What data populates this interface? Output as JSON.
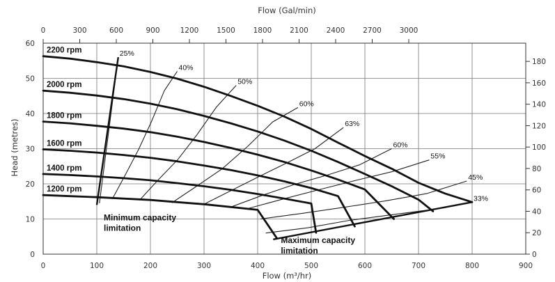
{
  "chart_data": {
    "type": "line",
    "title": "",
    "xlabel": "Flow (m³/hr)",
    "x2label": "Flow (Gal/min)",
    "ylabel": "Head (metres)",
    "xlim": [
      0,
      900
    ],
    "ylim": [
      0,
      60
    ],
    "x2lim": [
      0,
      3960
    ],
    "y2lim": [
      0,
      197
    ],
    "grid": true,
    "x_ticks": [
      "0",
      "100",
      "200",
      "300",
      "400",
      "500",
      "600",
      "700",
      "800",
      "900"
    ],
    "y_ticks": [
      "0",
      "10",
      "20",
      "30",
      "40",
      "50",
      "60"
    ],
    "x2_ticks": [
      "0",
      "300",
      "600",
      "900",
      "1200",
      "1500",
      "1800",
      "2100",
      "2400",
      "2700",
      "3000"
    ],
    "y2_ticks": [
      "0",
      "20",
      "40",
      "60",
      "80",
      "100",
      "120",
      "140",
      "160",
      "180"
    ],
    "series": [
      {
        "name": "2200 rpm",
        "x": [
          0,
          50,
          100,
          150,
          200,
          250,
          300,
          350,
          400,
          450,
          500,
          550,
          600,
          650,
          700,
          750,
          800
        ],
        "y": [
          56.3,
          55.6,
          54.6,
          53.4,
          51.8,
          49.9,
          47.6,
          45.0,
          42.2,
          39.1,
          35.6,
          31.7,
          27.9,
          24.3,
          20.3,
          17.2,
          14.8
        ]
      },
      {
        "name": "2000 rpm",
        "x": [
          0,
          50,
          100,
          150,
          200,
          250,
          300,
          350,
          400,
          450,
          500,
          550,
          600,
          650,
          700,
          727
        ],
        "y": [
          46.5,
          45.9,
          45.1,
          44.1,
          42.8,
          41.2,
          39.3,
          37.2,
          34.9,
          32.3,
          29.4,
          26.2,
          22.8,
          19.3,
          15.5,
          12.2
        ]
      },
      {
        "name": "1800 rpm",
        "x": [
          0,
          50,
          100,
          150,
          200,
          250,
          300,
          350,
          400,
          450,
          500,
          550,
          600,
          654
        ],
        "y": [
          37.7,
          37.2,
          36.5,
          35.7,
          34.7,
          33.4,
          31.9,
          30.2,
          28.3,
          26.2,
          23.8,
          21.2,
          18.4,
          10.0
        ]
      },
      {
        "name": "1600 rpm",
        "x": [
          0,
          50,
          100,
          150,
          200,
          250,
          300,
          350,
          400,
          450,
          500,
          550,
          581
        ],
        "y": [
          29.8,
          29.4,
          28.9,
          28.2,
          27.4,
          26.4,
          25.2,
          23.9,
          22.4,
          20.7,
          18.8,
          16.5,
          7.9
        ]
      },
      {
        "name": "1400 rpm",
        "x": [
          0,
          50,
          100,
          150,
          200,
          250,
          300,
          350,
          400,
          450,
          500,
          509
        ],
        "y": [
          22.8,
          22.5,
          22.1,
          21.6,
          21.0,
          20.2,
          19.3,
          18.3,
          17.1,
          15.8,
          14.4,
          6.1
        ]
      },
      {
        "name": "1200 rpm",
        "x": [
          0,
          50,
          100,
          150,
          200,
          250,
          300,
          350,
          400,
          436
        ],
        "y": [
          16.8,
          16.5,
          16.2,
          15.8,
          15.4,
          14.8,
          14.2,
          13.4,
          12.6,
          4.5
        ]
      }
    ],
    "efficiency_lines": [
      {
        "label": "25%",
        "x": [
          105,
          140
        ],
        "y": [
          14.5,
          56.0
        ]
      },
      {
        "label": "40%",
        "x": [
          130,
          154,
          178,
          202,
          226,
          250
        ],
        "y": [
          16.0,
          22.8,
          29.8,
          37.7,
          46.5,
          52.0
        ]
      },
      {
        "label": "50%",
        "x": [
          180,
          215,
          251,
          287,
          323,
          360
        ],
        "y": [
          15.4,
          21.2,
          26.9,
          34.0,
          41.8,
          48.0
        ]
      },
      {
        "label": "60%",
        "x": [
          240,
          287,
          334,
          381,
          428,
          475
        ],
        "y": [
          14.6,
          19.4,
          24.3,
          30.6,
          37.6,
          41.7
        ]
      },
      {
        "label": "63%",
        "x": [
          300,
          352,
          403,
          455,
          507,
          560
        ],
        "y": [
          14.2,
          18.2,
          22.1,
          26.0,
          30.0,
          36.0
        ]
      },
      {
        "label": "60%",
        "x": [
          350,
          410,
          470,
          530,
          590,
          650
        ],
        "y": [
          13.4,
          16.8,
          19.9,
          22.5,
          25.4,
          30.0
        ]
      },
      {
        "label": "55%",
        "x": [
          380,
          448,
          516,
          584,
          652,
          720
        ],
        "y": [
          12.9,
          15.7,
          18.4,
          21.0,
          23.5,
          26.8
        ]
      },
      {
        "label": "45%",
        "x": [
          405,
          483,
          560,
          637,
          715,
          790
        ],
        "y": [
          10.0,
          11.6,
          13.3,
          15.1,
          17.2,
          20.8
        ]
      },
      {
        "label": "33%",
        "x": [
          415,
          494,
          571,
          645,
          720,
          800
        ],
        "y": [
          6.0,
          7.5,
          9.6,
          11.1,
          12.6,
          14.8
        ]
      }
    ],
    "min_capacity": {
      "label_line1": "Minimum capacity",
      "label_line2": "limitation",
      "x": [
        100,
        140
      ],
      "y": [
        14.0,
        56.0
      ]
    },
    "max_capacity": {
      "label_line1": "Maximum capacity",
      "label_line2": "limitation",
      "x": [
        429,
        800
      ],
      "y": [
        4.2,
        14.8
      ]
    },
    "legend": "none"
  }
}
